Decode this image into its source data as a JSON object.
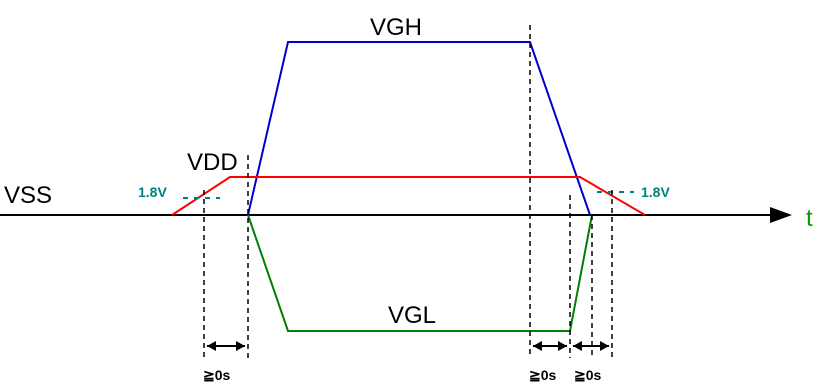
{
  "labels": {
    "vgh": "VGH",
    "vdd": "VDD",
    "vss": "VSS",
    "vgl": "VGL",
    "time_axis": "t",
    "threshold_left": "1.8V",
    "threshold_right": "1.8V",
    "delay_1": "≧0s",
    "delay_2": "≧0s",
    "delay_3": "≧0s"
  },
  "colors": {
    "vgh": "#0000cc",
    "vdd": "#ff0000",
    "vgl": "#008000",
    "threshold": "#008080",
    "time_axis_label": "#00a000",
    "axis": "#000000"
  }
}
